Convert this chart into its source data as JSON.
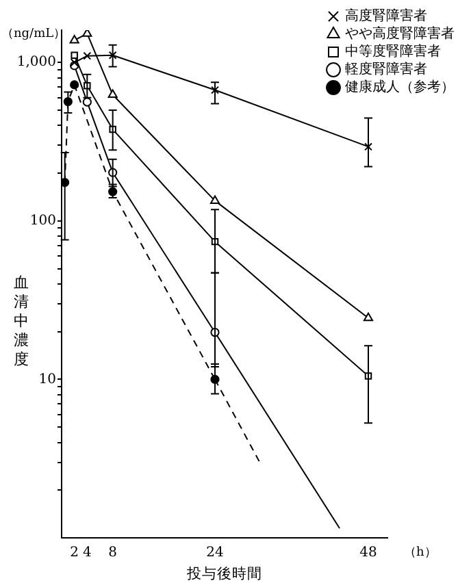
{
  "chart_data": {
    "type": "line",
    "ylabel": "血清中濃度",
    "xlabel": "投与後時間",
    "annotations": [
      "（ng/mL）",
      "（h）"
    ],
    "log": "y",
    "grid": false,
    "legend": "top right",
    "xlim": [
      0,
      51
    ],
    "xticks": [
      2,
      4,
      8,
      24,
      48
    ],
    "ylim": [
      1,
      1600
    ],
    "yticks": [
      {
        "value": 2,
        "label": null
      },
      {
        "value": 3,
        "label": null
      },
      {
        "value": 4,
        "label": null
      },
      {
        "value": 5,
        "label": null
      },
      {
        "value": 6,
        "label": null
      },
      {
        "value": 7,
        "label": null
      },
      {
        "value": 8,
        "label": null
      },
      {
        "value": 9,
        "label": null
      },
      10,
      {
        "value": 20,
        "label": null
      },
      {
        "value": 30,
        "label": null
      },
      {
        "value": 40,
        "label": null
      },
      {
        "value": 50,
        "label": null
      },
      {
        "value": 60,
        "label": null
      },
      {
        "value": 70,
        "label": null
      },
      {
        "value": 80,
        "label": null
      },
      {
        "value": 90,
        "label": null
      },
      100,
      {
        "value": 200,
        "label": null
      },
      {
        "value": 300,
        "label": null
      },
      {
        "value": 400,
        "label": null
      },
      {
        "value": 500,
        "label": null
      },
      {
        "value": 600,
        "label": null
      },
      {
        "value": 700,
        "label": null
      },
      {
        "value": 800,
        "label": null
      },
      {
        "value": 900,
        "label": null
      },
      {
        "value": 1000,
        "label": "1,000"
      }
    ],
    "series": [
      {
        "name": "高度腎障害者",
        "color": "#000000",
        "marker": "cross",
        "line_style": "solid",
        "x": [
          2,
          4,
          8,
          24,
          48
        ],
        "values": [
          1000,
          1100,
          1110,
          670,
          294
        ],
        "errors": [
          null,
          null,
          [
            940,
            1290
          ],
          [
            550,
            750
          ],
          [
            220,
            446
          ]
        ]
      },
      {
        "name": "やや高度腎障害者",
        "color": "#000000",
        "marker": "triangle",
        "line_style": "solid",
        "x": [
          2,
          4,
          8,
          24,
          48
        ],
        "values": [
          1380,
          1520,
          625,
          134,
          24.4
        ],
        "errors": [
          null,
          null,
          null,
          null,
          null
        ]
      },
      {
        "name": "中等度腎障害者",
        "color": "#000000",
        "marker": "square",
        "line_style": "solid",
        "x": [
          2,
          4,
          8,
          24,
          48
        ],
        "values": [
          1110,
          714,
          378,
          74,
          10.5
        ],
        "errors": [
          null,
          [
            600,
            840
          ],
          [
            280,
            500
          ],
          [
            47,
            118
          ],
          [
            5.3,
            16.3
          ]
        ]
      },
      {
        "name": "軽度腎障害者",
        "color": "#000000",
        "marker": "circle",
        "line_style": "solid",
        "x": [
          2,
          4,
          8,
          24
        ],
        "values": [
          955,
          563,
          202,
          19.8
        ],
        "errors": [
          null,
          null,
          [
            165,
            245
          ],
          [
            12,
            47
          ]
        ]
      },
      {
        "name": "健康成人（参考）",
        "color": "#000000",
        "marker": "filled-circle",
        "line_style": "dashed",
        "x": [
          0.5,
          1,
          2,
          8,
          24
        ],
        "values": [
          175,
          566,
          723,
          153,
          10
        ],
        "errors": [
          [
            76,
            270
          ],
          [
            480,
            650
          ],
          null,
          [
            140,
            170
          ],
          [
            8.1,
            12.5
          ]
        ]
      },
      {
        "type": "line",
        "color": "#000000",
        "marker": "none",
        "line_style": "solid",
        "x": [
          24,
          43.5
        ],
        "values": [
          19.8,
          1.15
        ]
      },
      {
        "type": "line",
        "color": "#000000",
        "marker": "none",
        "line_style": "dashed",
        "x": [
          24,
          31
        ],
        "values": [
          10,
          3.0
        ]
      }
    ]
  }
}
